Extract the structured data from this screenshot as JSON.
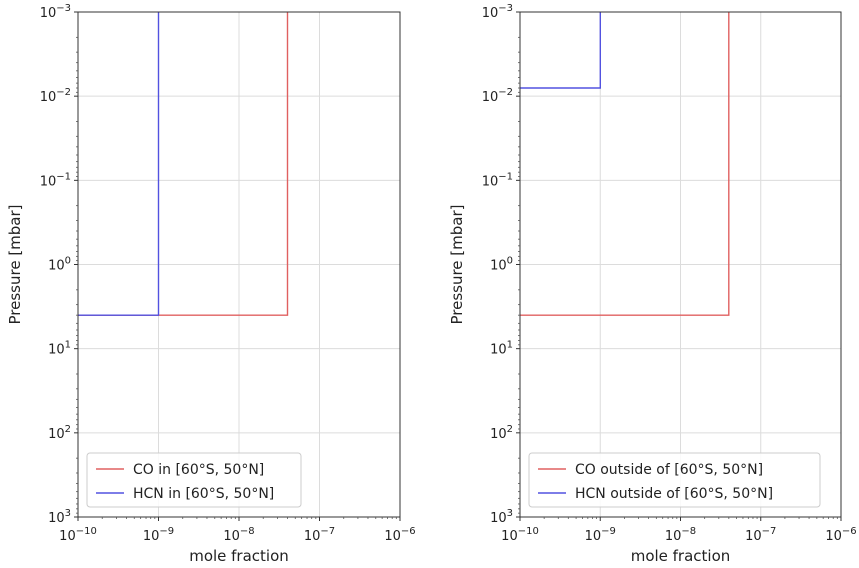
{
  "chart_data": [
    {
      "type": "line",
      "xlabel": "mole fraction",
      "ylabel": "Pressure [mbar]",
      "xscale": "log",
      "yscale": "log",
      "y_inverted": true,
      "xlim": [
        1e-10,
        1e-06
      ],
      "ylim": [
        1000,
        0.001
      ],
      "x_tick_labels": [
        {
          "value": 1e-10,
          "base": "10",
          "exp": "−10"
        },
        {
          "value": 1e-09,
          "base": "10",
          "exp": "−9"
        },
        {
          "value": 1e-08,
          "base": "10",
          "exp": "−8"
        },
        {
          "value": 1e-07,
          "base": "10",
          "exp": "−7"
        },
        {
          "value": 1e-06,
          "base": "10",
          "exp": "−6"
        }
      ],
      "y_tick_labels": [
        {
          "value": 0.001,
          "base": "10",
          "exp": "−3"
        },
        {
          "value": 0.01,
          "base": "10",
          "exp": "−2"
        },
        {
          "value": 0.1,
          "base": "10",
          "exp": "−1"
        },
        {
          "value": 1,
          "base": "10",
          "exp": "0"
        },
        {
          "value": 10,
          "base": "10",
          "exp": "1"
        },
        {
          "value": 100,
          "base": "10",
          "exp": "2"
        },
        {
          "value": 1000,
          "base": "10",
          "exp": "3"
        }
      ],
      "grid": true,
      "legend_position": "lower-left",
      "series": [
        {
          "name": "CO in [60°S, 50°N]",
          "color": "#e06060",
          "x": [
            1e-10,
            4e-08,
            4e-08
          ],
          "y": [
            4,
            4,
            0.001
          ]
        },
        {
          "name": "HCN in [60°S, 50°N]",
          "color": "#5252e0",
          "x": [
            1e-10,
            1e-09,
            1e-09
          ],
          "y": [
            4,
            4,
            0.001
          ]
        }
      ]
    },
    {
      "type": "line",
      "xlabel": "mole fraction",
      "ylabel": "Pressure [mbar]",
      "xscale": "log",
      "yscale": "log",
      "y_inverted": true,
      "xlim": [
        1e-10,
        1e-06
      ],
      "ylim": [
        1000,
        0.001
      ],
      "x_tick_labels": [
        {
          "value": 1e-10,
          "base": "10",
          "exp": "−10"
        },
        {
          "value": 1e-09,
          "base": "10",
          "exp": "−9"
        },
        {
          "value": 1e-08,
          "base": "10",
          "exp": "−8"
        },
        {
          "value": 1e-07,
          "base": "10",
          "exp": "−7"
        },
        {
          "value": 1e-06,
          "base": "10",
          "exp": "−6"
        }
      ],
      "y_tick_labels": [
        {
          "value": 0.001,
          "base": "10",
          "exp": "−3"
        },
        {
          "value": 0.01,
          "base": "10",
          "exp": "−2"
        },
        {
          "value": 0.1,
          "base": "10",
          "exp": "−1"
        },
        {
          "value": 1,
          "base": "10",
          "exp": "0"
        },
        {
          "value": 10,
          "base": "10",
          "exp": "1"
        },
        {
          "value": 100,
          "base": "10",
          "exp": "2"
        },
        {
          "value": 1000,
          "base": "10",
          "exp": "3"
        }
      ],
      "grid": true,
      "legend_position": "lower-left",
      "series": [
        {
          "name": "CO outside of [60°S, 50°N]",
          "color": "#e06060",
          "x": [
            1e-10,
            4e-08,
            4e-08
          ],
          "y": [
            4,
            4,
            0.001
          ]
        },
        {
          "name": "HCN outside of [60°S, 50°N]",
          "color": "#5252e0",
          "x": [
            1e-10,
            1e-09,
            1e-09
          ],
          "y": [
            0.008,
            0.008,
            0.001
          ]
        }
      ]
    }
  ]
}
